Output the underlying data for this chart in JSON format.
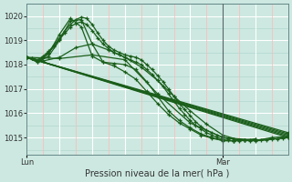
{
  "background_color": "#cce8e0",
  "plot_bg_color": "#cce8e0",
  "grid_major_color": "#ffffff",
  "grid_minor_color_h": "#aad4cc",
  "grid_minor_color_v": "#ffb0b0",
  "line_color": "#1a5e1a",
  "title": "Pression niveau de la mer( hPa )",
  "ylim": [
    1014.3,
    1020.5
  ],
  "yticks": [
    1015,
    1016,
    1017,
    1018,
    1019,
    1020
  ],
  "xlim": [
    0,
    48
  ],
  "lun_x": 0,
  "mar_x": 36,
  "vline_x": 36,
  "series": [
    {
      "x": [
        0,
        1,
        2,
        3,
        4,
        5,
        6,
        7,
        8,
        9,
        10,
        11,
        12,
        13,
        14,
        15,
        16,
        17,
        18,
        19,
        20,
        21,
        22,
        23,
        24,
        25,
        26,
        27,
        28,
        29,
        30,
        31,
        32,
        33,
        34,
        35,
        36,
        37,
        38,
        39,
        40,
        41,
        42,
        43,
        44,
        45,
        46,
        47,
        48
      ],
      "y": [
        1018.3,
        1018.25,
        1018.2,
        1018.35,
        1018.55,
        1018.8,
        1019.1,
        1019.4,
        1019.65,
        1019.85,
        1019.95,
        1019.9,
        1019.65,
        1019.3,
        1019.0,
        1018.75,
        1018.6,
        1018.5,
        1018.4,
        1018.35,
        1018.3,
        1018.2,
        1018.0,
        1017.8,
        1017.55,
        1017.3,
        1017.0,
        1016.7,
        1016.4,
        1016.15,
        1015.9,
        1015.65,
        1015.45,
        1015.3,
        1015.2,
        1015.1,
        1015.0,
        1014.95,
        1014.95,
        1014.9,
        1014.88,
        1014.87,
        1014.87,
        1014.88,
        1014.9,
        1014.93,
        1014.95,
        1014.97,
        1015.0
      ]
    },
    {
      "x": [
        0,
        1,
        2,
        3,
        4,
        5,
        6,
        7,
        8,
        9,
        10,
        11,
        12,
        13,
        14,
        15,
        16,
        17,
        18,
        19,
        20,
        21,
        22,
        23,
        24,
        25,
        26,
        27,
        28,
        29,
        30,
        31,
        32,
        33,
        34,
        35,
        36,
        37,
        38,
        39,
        40,
        41,
        42
      ],
      "y": [
        1018.3,
        1018.25,
        1018.15,
        1018.3,
        1018.5,
        1018.75,
        1019.05,
        1019.3,
        1019.55,
        1019.7,
        1019.75,
        1019.65,
        1019.4,
        1019.1,
        1018.85,
        1018.65,
        1018.5,
        1018.4,
        1018.3,
        1018.2,
        1018.1,
        1018.0,
        1017.8,
        1017.6,
        1017.35,
        1017.1,
        1016.8,
        1016.5,
        1016.2,
        1015.95,
        1015.7,
        1015.5,
        1015.35,
        1015.2,
        1015.1,
        1015.0,
        1014.92,
        1014.88,
        1014.87,
        1014.87,
        1014.88,
        1014.9,
        1014.92
      ]
    },
    {
      "x": [
        0,
        2,
        4,
        6,
        8,
        10,
        12,
        14,
        16,
        18,
        20,
        22,
        24,
        26,
        28,
        30,
        32,
        34,
        36,
        38,
        40,
        42
      ],
      "y": [
        1018.3,
        1018.1,
        1018.45,
        1019.25,
        1019.9,
        1019.55,
        1018.35,
        1018.1,
        1018.05,
        1018.0,
        1017.8,
        1017.3,
        1016.7,
        1016.1,
        1015.7,
        1015.4,
        1015.15,
        1015.0,
        1014.87,
        1014.87,
        1014.9,
        1014.95
      ]
    },
    {
      "x": [
        0,
        2,
        4,
        6,
        8,
        10,
        12,
        14,
        16,
        18,
        20,
        22,
        24,
        26,
        28,
        30,
        32,
        34,
        36,
        38,
        40
      ],
      "y": [
        1018.3,
        1018.1,
        1018.35,
        1019.0,
        1019.8,
        1019.85,
        1018.85,
        1018.1,
        1017.95,
        1017.7,
        1017.4,
        1016.9,
        1016.4,
        1015.95,
        1015.6,
        1015.35,
        1015.1,
        1014.97,
        1014.88,
        1014.87,
        1014.9
      ]
    },
    {
      "x": [
        0,
        3,
        6,
        9,
        12,
        15,
        18,
        21,
        24,
        27,
        30,
        33,
        36,
        39,
        42,
        45,
        48
      ],
      "y": [
        1018.3,
        1018.15,
        1018.3,
        1018.7,
        1018.85,
        1018.6,
        1018.3,
        1017.9,
        1017.35,
        1016.7,
        1016.1,
        1015.55,
        1015.1,
        1014.9,
        1014.88,
        1015.0,
        1015.05
      ]
    },
    {
      "x": [
        0,
        6,
        12,
        18,
        24,
        30,
        36,
        42,
        48
      ],
      "y": [
        1018.3,
        1018.25,
        1018.4,
        1018.2,
        1016.8,
        1015.6,
        1015.0,
        1014.9,
        1015.0
      ]
    },
    {
      "x": [
        0,
        48
      ],
      "y": [
        1018.3,
        1015.0
      ]
    },
    {
      "x": [
        0,
        48
      ],
      "y": [
        1018.3,
        1015.05
      ]
    },
    {
      "x": [
        0,
        48
      ],
      "y": [
        1018.3,
        1015.1
      ]
    },
    {
      "x": [
        0,
        48
      ],
      "y": [
        1018.3,
        1015.15
      ]
    },
    {
      "x": [
        0,
        48
      ],
      "y": [
        1018.3,
        1015.2
      ]
    }
  ]
}
